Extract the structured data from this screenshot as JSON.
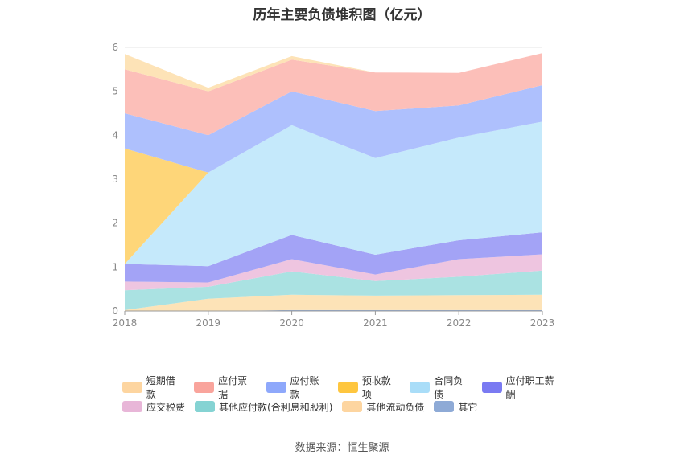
{
  "chart_data": {
    "type": "area",
    "title": "历年主要负债堆积图（亿元）",
    "stacked": true,
    "x": [
      "2018",
      "2019",
      "2020",
      "2021",
      "2022",
      "2023"
    ],
    "ylim": [
      0,
      6
    ],
    "yticks": [
      "0",
      "1",
      "2",
      "3",
      "4",
      "5",
      "6"
    ],
    "grid": true,
    "legend_position": "bottom",
    "series": [
      {
        "name": "其它",
        "color": "#8eaad6",
        "values": [
          0.0,
          0.0,
          0.02,
          0.02,
          0.02,
          0.02
        ]
      },
      {
        "name": "其他流动负债",
        "color": "#fde3b7",
        "values": [
          0.02,
          0.28,
          0.35,
          0.33,
          0.34,
          0.35
        ]
      },
      {
        "name": "其他应付款(合利息和股利)",
        "color": "#aae2e2",
        "values": [
          0.45,
          0.27,
          0.53,
          0.33,
          0.42,
          0.55
        ]
      },
      {
        "name": "应交税费",
        "color": "#eec5e0",
        "values": [
          0.2,
          0.1,
          0.28,
          0.15,
          0.4,
          0.37
        ]
      },
      {
        "name": "应付职工薪酬",
        "color": "#a3a3f6",
        "values": [
          0.4,
          0.37,
          0.55,
          0.45,
          0.43,
          0.5
        ]
      },
      {
        "name": "合同负债",
        "color": "#c5e9fb",
        "values": [
          0.0,
          2.13,
          2.5,
          2.2,
          2.34,
          2.52
        ]
      },
      {
        "name": "预收款项",
        "color": "#fed679",
        "values": [
          2.63,
          0.0,
          0.0,
          0.0,
          0.0,
          0.0
        ]
      },
      {
        "name": "应付账款",
        "color": "#aec0fd",
        "values": [
          0.8,
          0.85,
          0.77,
          1.07,
          0.73,
          0.83
        ]
      },
      {
        "name": "应付票据",
        "color": "#fcbfb9",
        "values": [
          1.0,
          1.0,
          0.72,
          0.88,
          0.74,
          0.73
        ]
      },
      {
        "name": "短期借款",
        "color": "#fde3b7",
        "values": [
          0.35,
          0.08,
          0.08,
          0.0,
          0.0,
          0.0
        ]
      }
    ],
    "legend_order": [
      "短期借款",
      "应付票据",
      "应付账款",
      "预收款项",
      "合同负债",
      "应付职工薪酬",
      "应交税费",
      "其他应付款(合利息和股利)",
      "其他流动负债",
      "其它"
    ],
    "legend_colors": [
      "#fdd5a0",
      "#f9a49c",
      "#8ea8fb",
      "#fec63f",
      "#a9ddf8",
      "#7a7af2",
      "#e8b6d8",
      "#85d3d3",
      "#fdd5a0",
      "#8eaad6"
    ]
  },
  "source": "数据来源：恒生聚源"
}
